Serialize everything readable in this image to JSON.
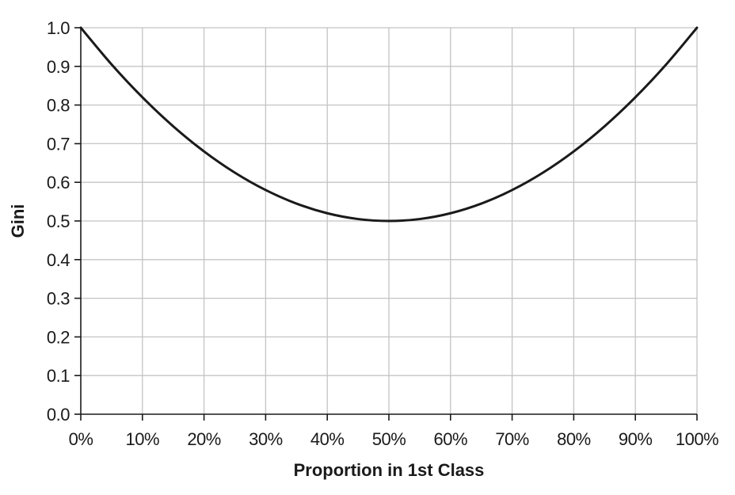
{
  "chart_data": {
    "type": "line",
    "title": "",
    "xlabel": "Proportion in 1st Class",
    "ylabel": "Gini",
    "x": [
      0,
      0.05,
      0.1,
      0.15,
      0.2,
      0.25,
      0.3,
      0.35,
      0.4,
      0.45,
      0.5,
      0.55,
      0.6,
      0.65,
      0.7,
      0.75,
      0.8,
      0.85,
      0.9,
      0.95,
      1.0
    ],
    "series": [
      {
        "name": "",
        "color": "#1a1a1a",
        "values": [
          1.0,
          0.905,
          0.82,
          0.745,
          0.68,
          0.625,
          0.58,
          0.545,
          0.52,
          0.505,
          0.5,
          0.505,
          0.52,
          0.545,
          0.58,
          0.625,
          0.68,
          0.745,
          0.82,
          0.905,
          1.0
        ]
      }
    ],
    "xlim": [
      0,
      1
    ],
    "ylim": [
      0,
      1
    ],
    "x_tick_values": [
      0,
      0.1,
      0.2,
      0.3,
      0.4,
      0.5,
      0.6,
      0.7,
      0.8,
      0.9,
      1.0
    ],
    "x_tick_labels": [
      "0%",
      "10%",
      "20%",
      "30%",
      "40%",
      "50%",
      "60%",
      "70%",
      "80%",
      "90%",
      "100%"
    ],
    "y_tick_values": [
      0,
      0.1,
      0.2,
      0.3,
      0.4,
      0.5,
      0.6,
      0.7,
      0.8,
      0.9,
      1.0
    ],
    "y_tick_labels": [
      "0.0",
      "0.1",
      "0.2",
      "0.3",
      "0.4",
      "0.5",
      "0.6",
      "0.7",
      "0.8",
      "0.9",
      "1.0"
    ],
    "grid": true,
    "legend": "none"
  }
}
